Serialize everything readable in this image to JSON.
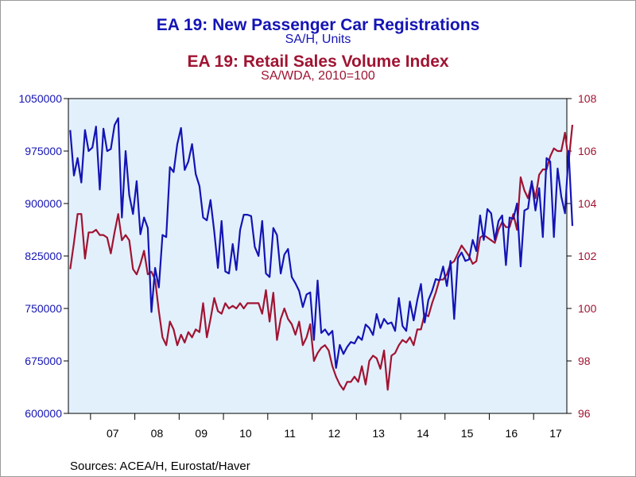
{
  "chart_data": {
    "type": "line",
    "titles": [
      {
        "text": "EA 19: New Passenger Car Registrations",
        "color": "#1414b4"
      },
      {
        "text": "SA/H, Units",
        "color": "#1414b4"
      },
      {
        "text": "EA 19: Retail Sales Volume Index",
        "color": "#a01432"
      },
      {
        "text": "SA/WDA, 2010=100",
        "color": "#a01432"
      }
    ],
    "source": "Sources:  ACEA/H, Eurostat/Haver",
    "background": "#e2f0fc",
    "x_domain": [
      2006.5,
      2017.75
    ],
    "x_ticks": [
      "07",
      "08",
      "09",
      "10",
      "11",
      "12",
      "13",
      "14",
      "15",
      "16",
      "17"
    ],
    "y_left": {
      "range": [
        600000,
        1050000
      ],
      "ticks": [
        "1050000",
        "975000",
        "900000",
        "825000",
        "750000",
        "675000",
        "600000"
      ],
      "color": "#1414b4"
    },
    "y_right": {
      "range": [
        96,
        108
      ],
      "ticks": [
        "108",
        "106",
        "104",
        "102",
        "100",
        "98",
        "96"
      ],
      "color": "#a01432"
    },
    "series": [
      {
        "name": "EA 19: New Passenger Car Registrations",
        "axis": "left",
        "color": "#1414b4",
        "start": "2006-07",
        "values": [
          1005000,
          940000,
          965000,
          930000,
          1005000,
          975000,
          980000,
          1010000,
          920000,
          1007000,
          975000,
          978000,
          1012000,
          1022000,
          880000,
          975000,
          912000,
          885000,
          932000,
          856000,
          880000,
          865000,
          745000,
          808000,
          780000,
          855000,
          852000,
          952000,
          945000,
          985000,
          1008000,
          948000,
          960000,
          985000,
          942000,
          925000,
          880000,
          876000,
          905000,
          860000,
          808000,
          875000,
          803000,
          800000,
          842000,
          805000,
          862000,
          884000,
          884000,
          882000,
          838000,
          825000,
          875000,
          800000,
          795000,
          865000,
          855000,
          800000,
          827000,
          835000,
          795000,
          786000,
          775000,
          752000,
          770000,
          773000,
          705000,
          790000,
          715000,
          720000,
          712000,
          718000,
          665000,
          698000,
          685000,
          695000,
          702000,
          700000,
          710000,
          705000,
          727000,
          722000,
          712000,
          742000,
          722000,
          735000,
          728000,
          730000,
          718000,
          765000,
          725000,
          718000,
          760000,
          733000,
          762000,
          785000,
          730000,
          762000,
          775000,
          792000,
          790000,
          810000,
          782000,
          818000,
          735000,
          822000,
          830000,
          818000,
          820000,
          848000,
          832000,
          883000,
          848000,
          892000,
          886000,
          848000,
          875000,
          883000,
          812000,
          880000,
          878000,
          900000,
          810000,
          890000,
          893000,
          932000,
          890000,
          922000,
          852000,
          965000,
          960000,
          852000,
          950000,
          910000,
          886000,
          975000,
          868000
        ]
      },
      {
        "name": "EA 19: Retail Sales Volume Index",
        "axis": "right",
        "color": "#a01432",
        "start": "2006-07",
        "values": [
          101.5,
          102.5,
          103.6,
          103.6,
          101.9,
          102.9,
          102.9,
          103.0,
          102.8,
          102.8,
          102.7,
          102.1,
          102.9,
          103.6,
          102.6,
          102.8,
          102.6,
          101.5,
          101.3,
          101.7,
          102.2,
          101.3,
          101.4,
          101.1,
          99.9,
          98.9,
          98.6,
          99.5,
          99.2,
          98.6,
          99.0,
          98.7,
          99.1,
          98.9,
          99.2,
          99.1,
          100.2,
          98.9,
          99.6,
          100.4,
          99.9,
          99.8,
          100.2,
          100.0,
          100.1,
          100.0,
          100.2,
          100.0,
          100.2,
          100.2,
          100.2,
          100.2,
          99.8,
          100.7,
          99.5,
          100.6,
          98.8,
          99.6,
          100.0,
          99.6,
          99.4,
          99.0,
          99.5,
          98.6,
          98.9,
          99.4,
          98.0,
          98.3,
          98.5,
          98.6,
          98.4,
          97.8,
          97.4,
          97.1,
          96.9,
          97.2,
          97.2,
          97.4,
          97.2,
          97.8,
          97.1,
          98.0,
          98.2,
          98.1,
          97.7,
          98.4,
          96.9,
          98.2,
          98.3,
          98.6,
          98.8,
          98.7,
          98.9,
          98.6,
          99.2,
          99.2,
          99.8,
          99.7,
          100.2,
          100.6,
          101.1,
          101.1,
          101.3,
          101.7,
          101.8,
          102.1,
          102.4,
          102.2,
          102.0,
          101.7,
          101.8,
          102.7,
          102.8,
          102.7,
          102.6,
          102.5,
          103.0,
          103.3,
          103.1,
          103.1,
          103.6,
          103.0,
          105.0,
          104.5,
          104.2,
          104.8,
          104.2,
          105.1,
          105.3,
          105.3,
          105.8,
          106.1,
          106.0,
          106.0,
          106.7,
          105.6,
          107.0
        ]
      }
    ]
  }
}
